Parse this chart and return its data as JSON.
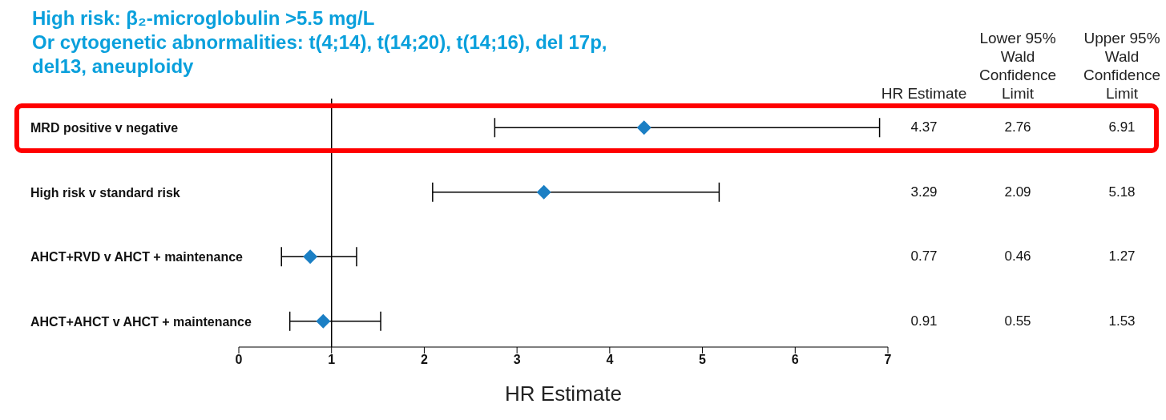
{
  "chart_data": {
    "type": "scatter",
    "orientation": "horizontal",
    "title": "High risk: β₂-microglobulin >5.5 mg/L",
    "subtitle": "Or cytogenetic abnormalities: t(4;14), t(14;20), t(14;16), del 17p, del13, aneuploidy",
    "xlabel": "HR Estimate",
    "categories": [
      "MRD positive v negative",
      "High risk v standard risk",
      "AHCT+RVD v AHCT + maintenance",
      "AHCT+AHCT v AHCT + maintenance"
    ],
    "values": [
      4.37,
      3.29,
      0.77,
      0.91
    ],
    "errors": [
      [
        2.76,
        6.91
      ],
      [
        2.09,
        5.18
      ],
      [
        0.46,
        1.27
      ],
      [
        0.55,
        1.53
      ]
    ],
    "color": "#1b7fc4",
    "marker": "diamond",
    "data_labels": true,
    "annotations": [
      "HR Estimate",
      "Lower 95% Wald Confidence Limit",
      "Upper 95% Wald Confidence Limit",
      "2.76",
      "6.91",
      "2.09",
      "5.18",
      "0.46",
      "1.27",
      "0.55",
      "1.53"
    ],
    "xlim": [
      0,
      7
    ],
    "xticks": [
      0,
      1,
      2,
      3,
      4,
      5,
      6,
      7
    ],
    "ref_lines": [
      {
        "axis": "x",
        "value": 1,
        "color": "#000000"
      }
    ],
    "grid": false,
    "legend": false
  }
}
